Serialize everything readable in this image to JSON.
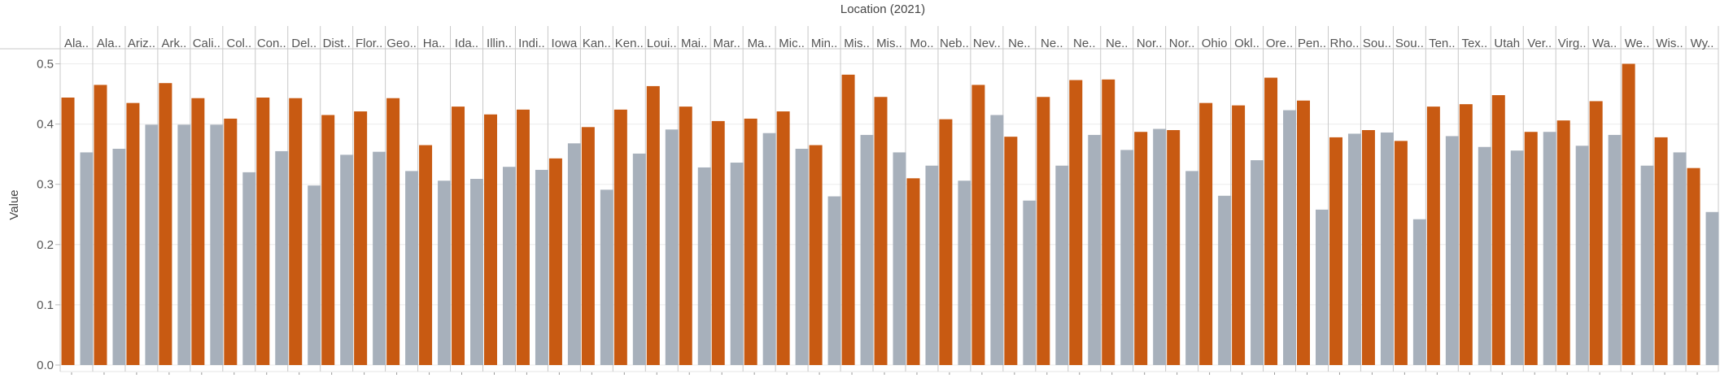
{
  "chart_data": {
    "type": "bar",
    "title": "Location (2021)",
    "xlabel": "Location (2021)",
    "ylabel": "Value",
    "ylim": [
      0,
      0.52
    ],
    "yticks": [
      "0.0",
      "0.1",
      "0.2",
      "0.3",
      "0.4",
      "0.5"
    ],
    "grid": true,
    "colors": {
      "series_a": "#c85a12",
      "series_b": "#a7b0bb",
      "panel_border": "#c8c8c8",
      "grid": "#ececec",
      "text": "#555555"
    },
    "categories": [
      "Ala..",
      "Ala..",
      "Ariz..",
      "Ark..",
      "Cali..",
      "Col..",
      "Con..",
      "Del..",
      "Dist..",
      "Flor..",
      "Geo..",
      "Ha..",
      "Ida..",
      "Illin..",
      "Indi..",
      "Iowa",
      "Kan..",
      "Ken..",
      "Loui..",
      "Mai..",
      "Mar..",
      "Ma..",
      "Mic..",
      "Min..",
      "Mis..",
      "Mis..",
      "Mo..",
      "Neb..",
      "Nev..",
      "Ne..",
      "Ne..",
      "Ne..",
      "Ne..",
      "Nor..",
      "Nor..",
      "Ohio",
      "Okl..",
      "Ore..",
      "Pen..",
      "Rho..",
      "Sou..",
      "Sou..",
      "Ten..",
      "Tex..",
      "Utah",
      "Ver..",
      "Virg..",
      "Wa..",
      "We..",
      "Wis..",
      "Wy.."
    ],
    "series": [
      {
        "values": [
          0.444,
          0.465,
          0.435,
          0.468,
          0.443,
          0.409,
          0.444,
          0.443,
          0.415,
          0.421,
          0.443,
          0.365,
          0.429,
          0.416,
          0.424,
          0.343,
          0.395,
          0.424,
          0.463,
          0.429,
          0.405,
          0.409,
          0.421,
          0.365,
          0.482,
          0.445,
          0.31,
          0.408,
          0.465,
          0.379,
          0.445,
          0.473,
          0.474,
          0.387,
          0.39,
          0.435,
          0.431,
          0.477,
          0.439,
          0.378,
          0.39,
          0.372,
          0.429,
          0.433,
          0.448,
          0.387,
          0.406,
          0.438,
          0.5,
          0.378,
          0.327
        ]
      },
      {
        "values": [
          0.353,
          0.359,
          0.399,
          0.399,
          0.399,
          0.32,
          0.355,
          0.298,
          0.349,
          0.354,
          0.322,
          0.306,
          0.309,
          0.329,
          0.324,
          0.368,
          0.291,
          0.351,
          0.391,
          0.328,
          0.336,
          0.385,
          0.359,
          0.28,
          0.382,
          0.353,
          0.331,
          0.306,
          0.415,
          0.273,
          0.331,
          0.382,
          0.357,
          0.392,
          0.322,
          0.281,
          0.34,
          0.423,
          0.258,
          0.384,
          0.386,
          0.242,
          0.38,
          0.362,
          0.356,
          0.387,
          0.364,
          0.382,
          0.331,
          0.353,
          0.254
        ]
      }
    ]
  }
}
